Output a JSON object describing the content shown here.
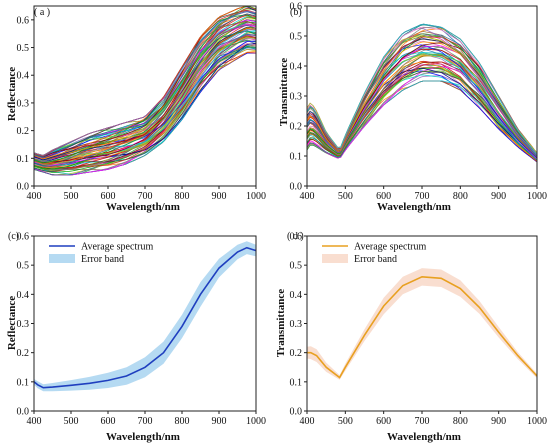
{
  "chart_data": [
    {
      "id": "a",
      "panel_label": "( a )",
      "type": "line",
      "title": "",
      "xlabel": "Wavelength/nm",
      "ylabel": "Reflectance",
      "xlim": [
        400,
        1000
      ],
      "ylim": [
        0,
        0.65
      ],
      "xticks": [
        "400",
        "500",
        "600",
        "700",
        "800",
        "900",
        "1000"
      ],
      "yticks": [
        "0.0",
        "0.1",
        "0.2",
        "0.3",
        "0.4",
        "0.5",
        "0.6"
      ],
      "x": [
        400,
        425,
        450,
        500,
        550,
        600,
        650,
        700,
        750,
        800,
        850,
        900,
        950,
        975,
        1000
      ],
      "series_count": 80,
      "series_envelope": {
        "lower": [
          0.06,
          0.05,
          0.04,
          0.04,
          0.05,
          0.06,
          0.08,
          0.11,
          0.16,
          0.24,
          0.34,
          0.42,
          0.46,
          0.48,
          0.48
        ],
        "upper": [
          0.12,
          0.11,
          0.13,
          0.16,
          0.19,
          0.21,
          0.23,
          0.25,
          0.32,
          0.43,
          0.54,
          0.61,
          0.64,
          0.65,
          0.64
        ]
      },
      "grid": false
    },
    {
      "id": "b",
      "panel_label": "(b)",
      "type": "line",
      "title": "",
      "xlabel": "Wavelength/nm",
      "ylabel": "Transmittance",
      "xlim": [
        400,
        1000
      ],
      "ylim": [
        0,
        0.6
      ],
      "xticks": [
        "400",
        "500",
        "600",
        "700",
        "800",
        "900",
        "1000"
      ],
      "yticks": [
        "0.0",
        "0.1",
        "0.2",
        "0.3",
        "0.4",
        "0.5",
        "0.6"
      ],
      "x": [
        400,
        410,
        425,
        450,
        485,
        500,
        550,
        600,
        650,
        700,
        750,
        800,
        850,
        900,
        950,
        1000
      ],
      "series_count": 60,
      "series_envelope": {
        "lower": [
          0.12,
          0.14,
          0.13,
          0.11,
          0.09,
          0.12,
          0.2,
          0.27,
          0.32,
          0.35,
          0.35,
          0.32,
          0.26,
          0.19,
          0.13,
          0.08
        ],
        "upper": [
          0.26,
          0.28,
          0.25,
          0.18,
          0.12,
          0.17,
          0.31,
          0.43,
          0.51,
          0.54,
          0.53,
          0.49,
          0.41,
          0.3,
          0.19,
          0.11
        ]
      },
      "grid": false
    },
    {
      "id": "c",
      "panel_label": "(c)",
      "type": "line",
      "title": "",
      "xlabel": "Wavelength/nm",
      "ylabel": "Reflectance",
      "xlim": [
        400,
        1000
      ],
      "ylim": [
        0,
        0.6
      ],
      "xticks": [
        "400",
        "500",
        "600",
        "700",
        "800",
        "900",
        "1000"
      ],
      "yticks": [
        "0.0",
        "0.1",
        "0.2",
        "0.3",
        "0.4",
        "0.5",
        "0.6"
      ],
      "legend": [
        "Average spectrum",
        "Error band"
      ],
      "legend_position": "top-left",
      "line_color": "#1f3fbf",
      "band_color": "#a8d4f0",
      "x": [
        400,
        410,
        425,
        450,
        500,
        550,
        600,
        650,
        700,
        750,
        800,
        850,
        900,
        950,
        975,
        1000
      ],
      "values": [
        0.1,
        0.09,
        0.08,
        0.082,
        0.088,
        0.095,
        0.105,
        0.12,
        0.15,
        0.2,
        0.29,
        0.4,
        0.49,
        0.545,
        0.56,
        0.55
      ],
      "error": [
        0.01,
        0.012,
        0.012,
        0.014,
        0.018,
        0.022,
        0.026,
        0.03,
        0.034,
        0.038,
        0.04,
        0.042,
        0.032,
        0.025,
        0.022,
        0.02
      ],
      "grid": false
    },
    {
      "id": "d",
      "panel_label": "( d )",
      "type": "line",
      "title": "",
      "xlabel": "Wavelength/nm",
      "ylabel": "Transmittance",
      "xlim": [
        400,
        1000
      ],
      "ylim": [
        0,
        0.6
      ],
      "xticks": [
        "400",
        "500",
        "600",
        "700",
        "800",
        "900",
        "1000"
      ],
      "yticks": [
        "0.0",
        "0.1",
        "0.2",
        "0.3",
        "0.4",
        "0.5",
        "0.6"
      ],
      "legend": [
        "Average spectrum",
        "Error band"
      ],
      "legend_position": "top-left",
      "line_color": "#e8a020",
      "band_color": "#f8d8c8",
      "x": [
        400,
        410,
        425,
        450,
        485,
        500,
        550,
        600,
        650,
        700,
        750,
        800,
        850,
        900,
        950,
        1000
      ],
      "values": [
        0.2,
        0.2,
        0.19,
        0.15,
        0.115,
        0.15,
        0.26,
        0.36,
        0.43,
        0.46,
        0.455,
        0.42,
        0.355,
        0.27,
        0.19,
        0.12
      ],
      "error": [
        0.02,
        0.022,
        0.022,
        0.016,
        0.008,
        0.012,
        0.02,
        0.028,
        0.03,
        0.03,
        0.03,
        0.028,
        0.022,
        0.018,
        0.012,
        0.008
      ],
      "grid": false
    }
  ]
}
